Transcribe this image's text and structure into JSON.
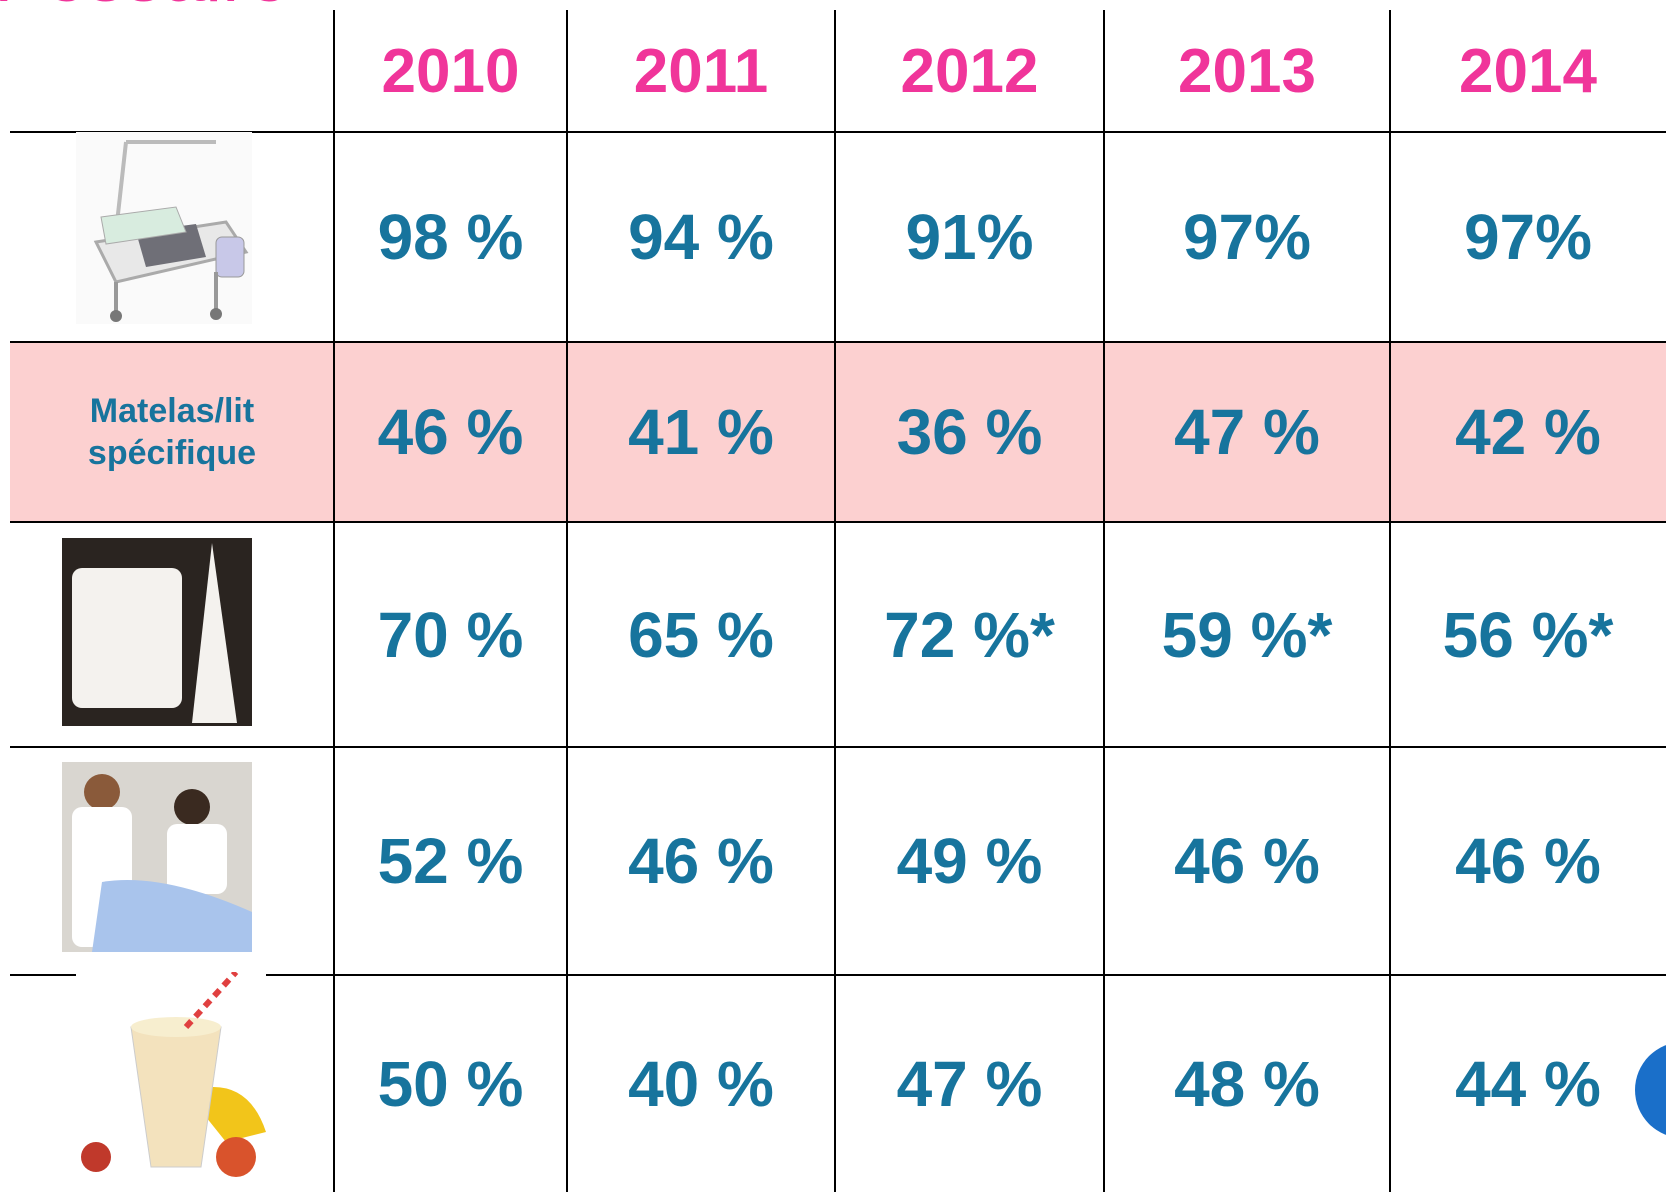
{
  "title": "Pessaire",
  "table": {
    "header": [
      "2010",
      "2011",
      "2012",
      "2013",
      "2014"
    ],
    "rows": [
      {
        "label": null,
        "cells": [
          "98 %",
          "94 %",
          "91%",
          "97%",
          "97%"
        ]
      },
      {
        "label": "Matelas/lit spécifique",
        "cells": [
          "46 %",
          "41 %",
          "36 %",
          "47 %",
          "42 %"
        ]
      },
      {
        "label": null,
        "cells": [
          "70 %",
          "65 %",
          "72 %*",
          "59 %*",
          "56 %*"
        ]
      },
      {
        "label": null,
        "cells": [
          "52 %",
          "46 %",
          "49 %",
          "46 %",
          "46 %"
        ]
      },
      {
        "label": null,
        "cells": [
          "50 %",
          "40 %",
          "47 %",
          "48 %",
          "44 %"
        ]
      }
    ]
  }
}
